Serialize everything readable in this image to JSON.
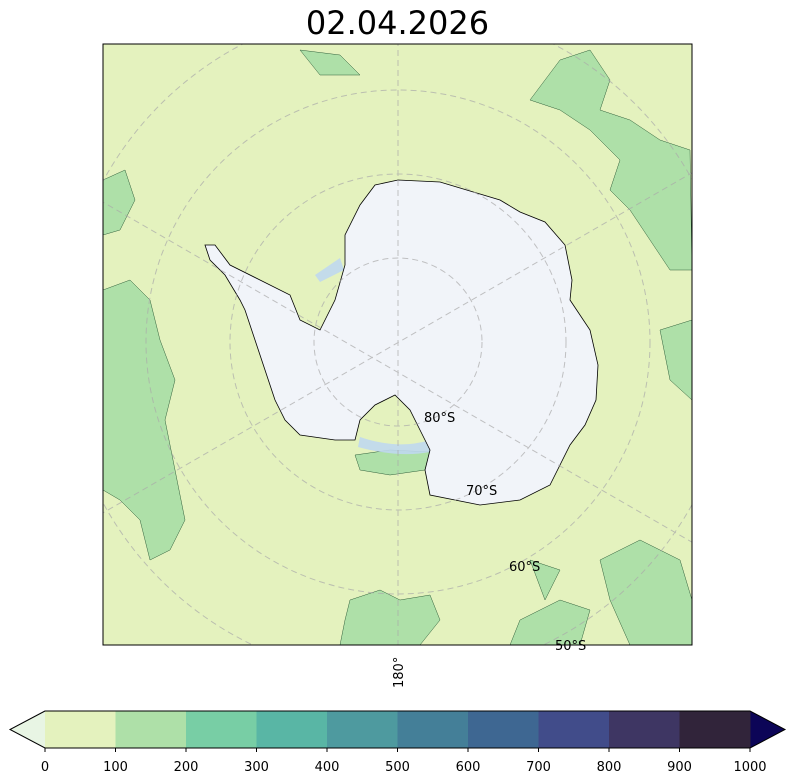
{
  "title": "02.04.2026",
  "map": {
    "projection": "south-polar-stereographic",
    "latitude_labels": [
      "80°S",
      "70°S",
      "60°S",
      "50°S"
    ],
    "longitude_labels": [
      "180°"
    ],
    "gridlines": true,
    "land_color": "#f1f4f9",
    "ocean_background_color": "#e4f2be"
  },
  "colorbar": {
    "ticks": [
      "0",
      "100",
      "200",
      "300",
      "400",
      "500",
      "600",
      "700",
      "800",
      "900",
      "1000"
    ],
    "colors": [
      "#e4f2be",
      "#aee0a8",
      "#78cea5",
      "#59b6a5",
      "#4e9a9f",
      "#447f98",
      "#3e6792",
      "#414c8a",
      "#3e3663",
      "#31243a"
    ],
    "under_color": "#e8f5e4",
    "over_color": "#0c0557",
    "extend": "both"
  }
}
